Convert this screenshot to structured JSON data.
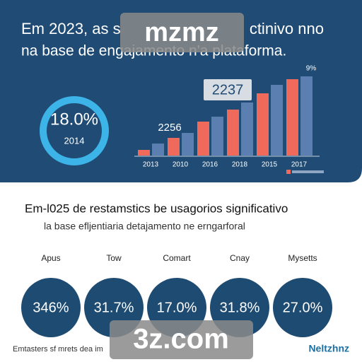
{
  "header": {
    "title_left": "Em 2023, as s",
    "title_right": "ctinivo nno",
    "subtitle": "na base de engajamento n'a plataforma."
  },
  "highlight": {
    "value": "18.0%",
    "year": "2014"
  },
  "chart_data": {
    "type": "bar",
    "categories": [
      "2013",
      "2010",
      "2016",
      "2018",
      "2015",
      "2017"
    ],
    "series": [
      {
        "color": "#ef6a5b",
        "values": [
          8,
          25,
          48,
          65,
          88,
          108
        ]
      },
      {
        "color": "#5a7fb0",
        "values": [
          17,
          32,
          55,
          75,
          100,
          112
        ]
      }
    ],
    "annotations": [
      "2237",
      "2256",
      "9%"
    ]
  },
  "section": {
    "title": "Em-l025 de restamstics be usagorios significativo",
    "subtitle": "la base efljentiaria detajamento ne erngarforal"
  },
  "stats": [
    {
      "label": "Apus",
      "value": "346%"
    },
    {
      "label": "Tow",
      "value": "31.7%"
    },
    {
      "label": "Comart",
      "value": "17.0%"
    },
    {
      "label": "Cnay",
      "value": "31.8%"
    },
    {
      "label": "Mysetts",
      "value": "27.0%"
    }
  ],
  "footer": {
    "left": "Emtasters sf mrets dea im",
    "right": "Neltzhnz"
  },
  "watermarks": [
    "mzmz",
    "3z.com"
  ]
}
